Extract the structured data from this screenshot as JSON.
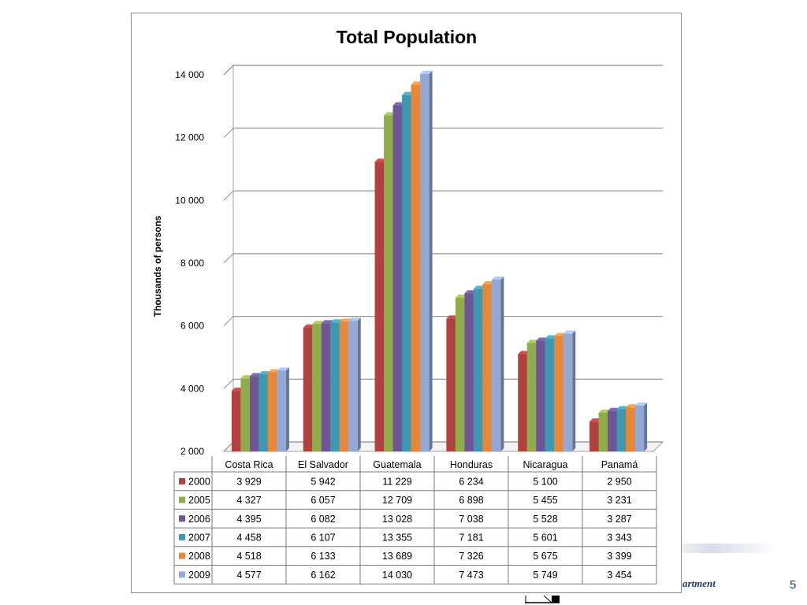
{
  "chart_data": {
    "type": "bar",
    "title": "Total Population",
    "xlabel": "",
    "ylabel": "Thousands of persons",
    "ylim": [
      2000,
      14000
    ],
    "yticks": [
      2000,
      4000,
      6000,
      8000,
      10000,
      12000,
      14000
    ],
    "ytick_labels": [
      "2 000",
      "4 000",
      "6 000",
      "8 000",
      "10 000",
      "12 000",
      "14 000"
    ],
    "grid": true,
    "legend": "data table below plot",
    "categories": [
      "Costa Rica",
      "El Salvador",
      "Guatemala",
      "Honduras",
      "Nicaragua",
      "Panamá"
    ],
    "series": [
      {
        "name": "2000",
        "color": "#b0413e",
        "values": [
          3929,
          5942,
          11229,
          6234,
          5100,
          2950
        ],
        "labels": [
          "3 929",
          "5 942",
          "11 229",
          "6 234",
          "5 100",
          "2 950"
        ]
      },
      {
        "name": "2005",
        "color": "#8fac4b",
        "values": [
          4327,
          6057,
          12709,
          6898,
          5455,
          3231
        ],
        "labels": [
          "4 327",
          "6 057",
          "12 709",
          "6 898",
          "5 455",
          "3 231"
        ]
      },
      {
        "name": "2006",
        "color": "#6f5496",
        "values": [
          4395,
          6082,
          13028,
          7038,
          5528,
          3287
        ],
        "labels": [
          "4 395",
          "6 082",
          "13 028",
          "7 038",
          "5 528",
          "3 287"
        ]
      },
      {
        "name": "2007",
        "color": "#3d98b0",
        "values": [
          4458,
          6107,
          13355,
          7181,
          5601,
          3343
        ],
        "labels": [
          "4 458",
          "6 107",
          "13 355",
          "7 181",
          "5 601",
          "3 343"
        ]
      },
      {
        "name": "2008",
        "color": "#e5883a",
        "values": [
          4518,
          6133,
          13689,
          7326,
          5675,
          3399
        ],
        "labels": [
          "4 518",
          "6 133",
          "13 689",
          "7 326",
          "5 675",
          "3 399"
        ]
      },
      {
        "name": "2009",
        "color": "#93a9d4",
        "values": [
          4577,
          6162,
          14030,
          7473,
          5749,
          3454
        ],
        "labels": [
          "4 577",
          "6 162",
          "14 030",
          "7 473",
          "5 749",
          "3 454"
        ]
      }
    ]
  },
  "footer": {
    "text": "artment",
    "page_number": "5"
  }
}
